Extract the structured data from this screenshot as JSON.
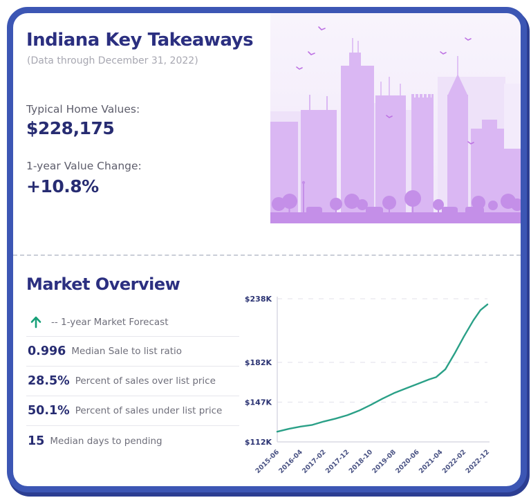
{
  "header": {
    "title": "Indiana Key Takeaways",
    "subtitle": "(Data through December 31, 2022)",
    "typical_home_values": {
      "label": "Typical Home Values:",
      "value": "$228,175"
    },
    "value_change": {
      "label": "1-year Value Change:",
      "value": "+10.8%"
    }
  },
  "market_overview": {
    "title": "Market Overview",
    "forecast": {
      "icon": "arrow-up-icon",
      "label": "-- 1-year Market Forecast"
    },
    "rows": [
      {
        "value": "0.996",
        "label": "Median Sale to list ratio"
      },
      {
        "value": "28.5%",
        "label": "Percent of sales over list price"
      },
      {
        "value": "50.1%",
        "label": "Percent of sales under list price"
      },
      {
        "value": "15",
        "label": "Median days to pending"
      }
    ]
  },
  "chart_data": {
    "type": "line",
    "title": "",
    "xlabel": "",
    "ylabel": "",
    "ylim": [
      112,
      238
    ],
    "unit": "$K (USD thousands)",
    "grid": "horizontal-dashed",
    "legend_position": "none",
    "y_ticks": [
      "$238K",
      "$182K",
      "$147K",
      "$112K"
    ],
    "y_tick_values": [
      238,
      182,
      147,
      112
    ],
    "x_ticks": [
      "2015-06",
      "2016-04",
      "2017-02",
      "2017-12",
      "2018-10",
      "2019-08",
      "2020-06",
      "2021-04",
      "2022-02",
      "2022-12"
    ],
    "x_tick_months": [
      0,
      10,
      20,
      30,
      40,
      50,
      60,
      70,
      80,
      90
    ],
    "points": [
      [
        0,
        121
      ],
      [
        5,
        123.5
      ],
      [
        10,
        125.5
      ],
      [
        15,
        127
      ],
      [
        20,
        130
      ],
      [
        25,
        132.5
      ],
      [
        30,
        135.5
      ],
      [
        35,
        139.5
      ],
      [
        40,
        144.5
      ],
      [
        45,
        150
      ],
      [
        50,
        155
      ],
      [
        55,
        159
      ],
      [
        60,
        163
      ],
      [
        65,
        167
      ],
      [
        68,
        169
      ],
      [
        72,
        176
      ],
      [
        76,
        190
      ],
      [
        80,
        205
      ],
      [
        84,
        219
      ],
      [
        87,
        228
      ],
      [
        90,
        233
      ]
    ],
    "line_color": "#2aa087"
  },
  "colors": {
    "frame_blue": "#3c56b4",
    "frame_shadow_navy": "#2c3e92",
    "heading_navy": "#2b2f80",
    "value_navy": "#272c72",
    "label_gray": "#5d5d6b",
    "subtitle_gray": "#a7a7b1",
    "forecast_green": "#17a078",
    "chart_line_green": "#2aa087",
    "skyline_sky": "#f7f2fb",
    "skyline_back_building": "#eee2f9",
    "skyline_front_building": "#dab7f3",
    "skyline_detail_purple": "#c48fe8"
  }
}
